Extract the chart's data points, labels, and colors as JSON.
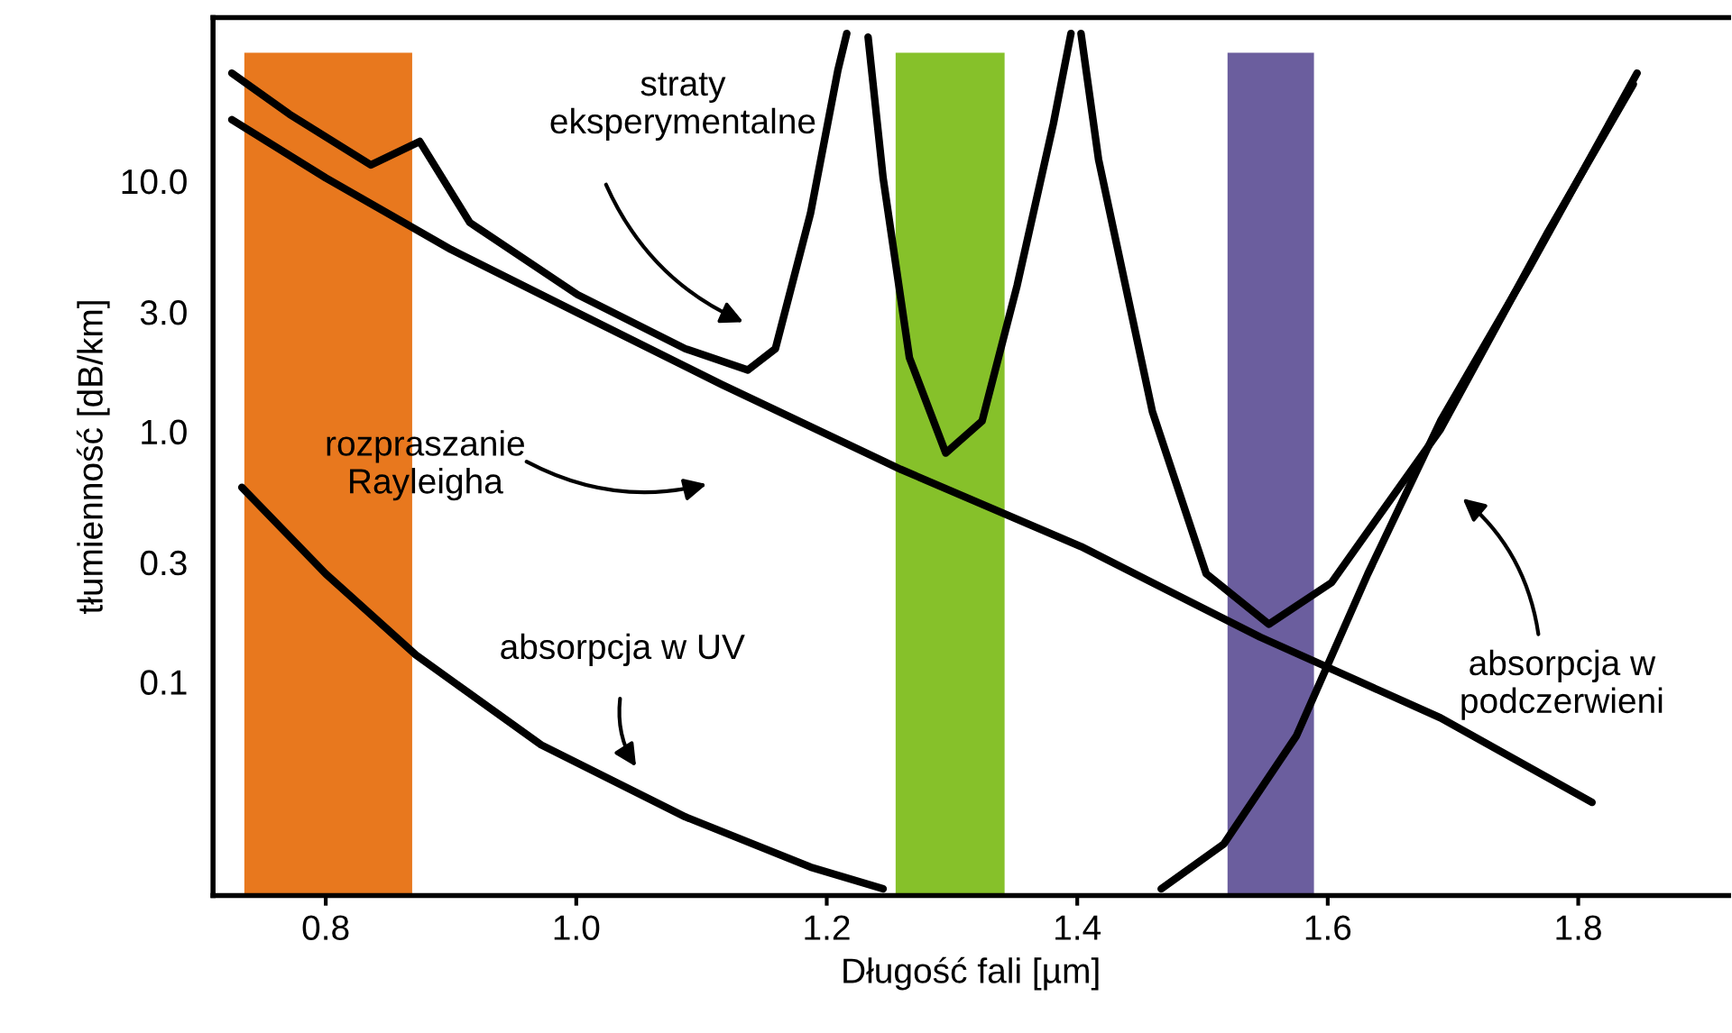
{
  "chart_data": {
    "type": "line",
    "xlabel": "Długość fali [µm]",
    "ylabel": "tłumienność [dB/km]",
    "log": "y",
    "xlim": [
      0.71,
      1.92
    ],
    "xticks": [
      {
        "value": 0.8,
        "label": "0.8"
      },
      {
        "value": 1.0,
        "label": "1.0"
      },
      {
        "value": 1.2,
        "label": "1.2"
      },
      {
        "value": 1.4,
        "label": "1.4"
      },
      {
        "value": 1.6,
        "label": "1.6"
      },
      {
        "value": 1.8,
        "label": "1.8"
      }
    ],
    "ylim": [
      0.014,
      45
    ],
    "yticks": [
      {
        "value": 10,
        "label": "10.0"
      },
      {
        "value": 3,
        "label": "3.0"
      },
      {
        "value": 1,
        "label": "1.0"
      },
      {
        "value": 0.3,
        "label": "0.3"
      },
      {
        "value": 0.1,
        "label": "0.1"
      }
    ],
    "grid": false,
    "bands": [
      {
        "axis": "x",
        "from": 0.735,
        "to": 0.869,
        "color": "#e8781e"
      },
      {
        "axis": "x",
        "from": 1.255,
        "to": 1.342,
        "color": "#86c12a"
      },
      {
        "axis": "x",
        "from": 1.52,
        "to": 1.589,
        "color": "#6b5e9e"
      }
    ],
    "series": [
      {
        "color": "#000000",
        "x": [
          0.725,
          0.771,
          0.836,
          0.875,
          0.915,
          1.001,
          1.087,
          1.137,
          1.159,
          1.187,
          1.209,
          1.216
        ],
        "values": [
          27.0,
          18.5,
          11.6,
          14.4,
          6.83,
          3.52,
          2.14,
          1.76,
          2.14,
          7.42,
          27.9,
          38.9
        ]
      },
      {
        "color": "#000000",
        "x": [
          1.233,
          1.245,
          1.266,
          1.295,
          1.324,
          1.352,
          1.381,
          1.395
        ],
        "values": [
          37.6,
          10.3,
          1.97,
          0.82,
          1.1,
          3.83,
          17.0,
          38.9
        ]
      },
      {
        "color": "#000000",
        "x": [
          1.403,
          1.417,
          1.46,
          1.503,
          1.553,
          1.603,
          1.69,
          1.776,
          1.844
        ],
        "values": [
          38.9,
          12.2,
          1.2,
          0.27,
          0.17,
          0.249,
          1.02,
          6.29,
          24.4
        ]
      },
      {
        "color": "#000000",
        "x": [
          0.725,
          0.8,
          0.9,
          1.001,
          1.116,
          1.259,
          1.403,
          1.546,
          1.69,
          1.811
        ],
        "values": [
          17.6,
          10.3,
          5.33,
          2.98,
          1.54,
          0.706,
          0.347,
          0.151,
          0.0718,
          0.033
        ]
      },
      {
        "color": "#000000",
        "x": [
          0.733,
          0.8,
          0.872,
          0.972,
          1.087,
          1.187,
          1.245
        ],
        "values": [
          0.598,
          0.27,
          0.128,
          0.056,
          0.0289,
          0.0182,
          0.0149
        ]
      },
      {
        "color": "#000000",
        "x": [
          1.467,
          1.517,
          1.575,
          1.632,
          1.69,
          1.761,
          1.847
        ],
        "values": [
          0.0149,
          0.0225,
          0.0608,
          0.27,
          1.1,
          4.51,
          27.0
        ]
      }
    ],
    "annotations": [
      "straty\neksperymentalne",
      "rozpraszanie\nRayleigha",
      "absorpcja w UV",
      "absorpcja w\npodczerwieni"
    ]
  }
}
